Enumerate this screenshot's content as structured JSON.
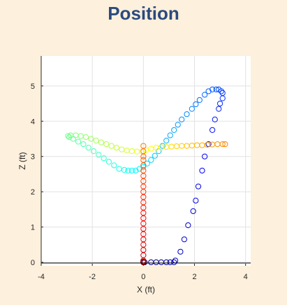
{
  "page": {
    "title": "Position",
    "background": "#fdf0dc",
    "title_color": "#2b4a7e"
  },
  "chart_data": {
    "type": "scatter",
    "title": "Position",
    "xlabel": "X (ft)",
    "ylabel": "Z (ft)",
    "xlim": [
      -4,
      4.2
    ],
    "ylim": [
      -0.1,
      5.85
    ],
    "xticks": [
      -4,
      -2,
      0,
      2,
      4
    ],
    "yticks": [
      0,
      1,
      2,
      3,
      4,
      5
    ],
    "grid": true,
    "marker": "open-circle",
    "colormap": "jet (blue → cyan → green → yellow → red, by sample order)",
    "series": [
      {
        "x": [
          0.05,
          0.3,
          0.5,
          0.7,
          0.9,
          1.05,
          1.2,
          1.25,
          1.45,
          1.6,
          1.75,
          1.95,
          2.05,
          2.15,
          2.3,
          2.4,
          2.55,
          2.7,
          2.8,
          2.95,
          3.0,
          3.1,
          3.1,
          3.05,
          2.95,
          2.85,
          2.7,
          2.55,
          2.4,
          2.2,
          2.05,
          1.9,
          1.7,
          1.5,
          1.35,
          1.2,
          1.05,
          0.9,
          0.75,
          0.6,
          0.45,
          0.3,
          0.15,
          0.0,
          -0.15,
          -0.3,
          -0.45,
          -0.6,
          -0.75,
          -0.95,
          -1.15,
          -1.35,
          -1.55,
          -1.75,
          -1.95,
          -2.15,
          -2.35,
          -2.55,
          -2.75,
          -2.9,
          -2.95,
          -2.85,
          -2.65,
          -2.45,
          -2.25,
          -2.05,
          -1.85,
          -1.65,
          -1.45,
          -1.25,
          -1.05,
          -0.85,
          -0.65,
          -0.45,
          -0.25,
          -0.05,
          0.1,
          0.3,
          0.5,
          0.7,
          0.9,
          1.1,
          1.3,
          1.5,
          1.7,
          1.9,
          2.1,
          2.3,
          2.5,
          2.7,
          2.9,
          3.1,
          3.2,
          0.0,
          0.0,
          0.0,
          0.0,
          0.0,
          0.0,
          0.0,
          0.0,
          0.0,
          0.0,
          0.0,
          0.0,
          0.0,
          0.0,
          0.0,
          0.0,
          0.0,
          0.0,
          0.0,
          0.0,
          0.0,
          0.0,
          0.0,
          0.0,
          0.0,
          0.0,
          0.0,
          0.0,
          0.0,
          0.0,
          0.0
        ],
        "y": [
          0.0,
          0.0,
          0.0,
          0.0,
          0.0,
          0.0,
          0.0,
          0.05,
          0.3,
          0.65,
          1.05,
          1.45,
          1.75,
          2.15,
          2.6,
          3.0,
          3.35,
          3.75,
          4.05,
          4.35,
          4.5,
          4.65,
          4.8,
          4.85,
          4.9,
          4.9,
          4.9,
          4.85,
          4.75,
          4.6,
          4.48,
          4.35,
          4.2,
          4.05,
          3.9,
          3.75,
          3.6,
          3.45,
          3.3,
          3.15,
          3.02,
          2.9,
          2.8,
          2.7,
          2.65,
          2.6,
          2.6,
          2.6,
          2.62,
          2.65,
          2.75,
          2.85,
          2.95,
          3.05,
          3.15,
          3.25,
          3.35,
          3.42,
          3.5,
          3.55,
          3.58,
          3.6,
          3.6,
          3.58,
          3.55,
          3.5,
          3.45,
          3.4,
          3.35,
          3.3,
          3.25,
          3.2,
          3.17,
          3.15,
          3.14,
          3.14,
          3.18,
          3.22,
          3.25,
          3.26,
          3.27,
          3.28,
          3.29,
          3.3,
          3.3,
          3.31,
          3.32,
          3.32,
          3.33,
          3.34,
          3.35,
          3.35,
          3.35,
          3.3,
          3.15,
          3.0,
          2.9,
          2.75,
          2.6,
          2.45,
          2.3,
          2.15,
          2.0,
          1.85,
          1.7,
          1.55,
          1.4,
          1.25,
          1.1,
          0.95,
          0.8,
          0.65,
          0.5,
          0.35,
          0.2,
          0.05,
          0.02,
          0.0,
          0.0,
          0.0,
          0.0,
          0.0,
          0.0,
          0.0
        ]
      }
    ]
  }
}
